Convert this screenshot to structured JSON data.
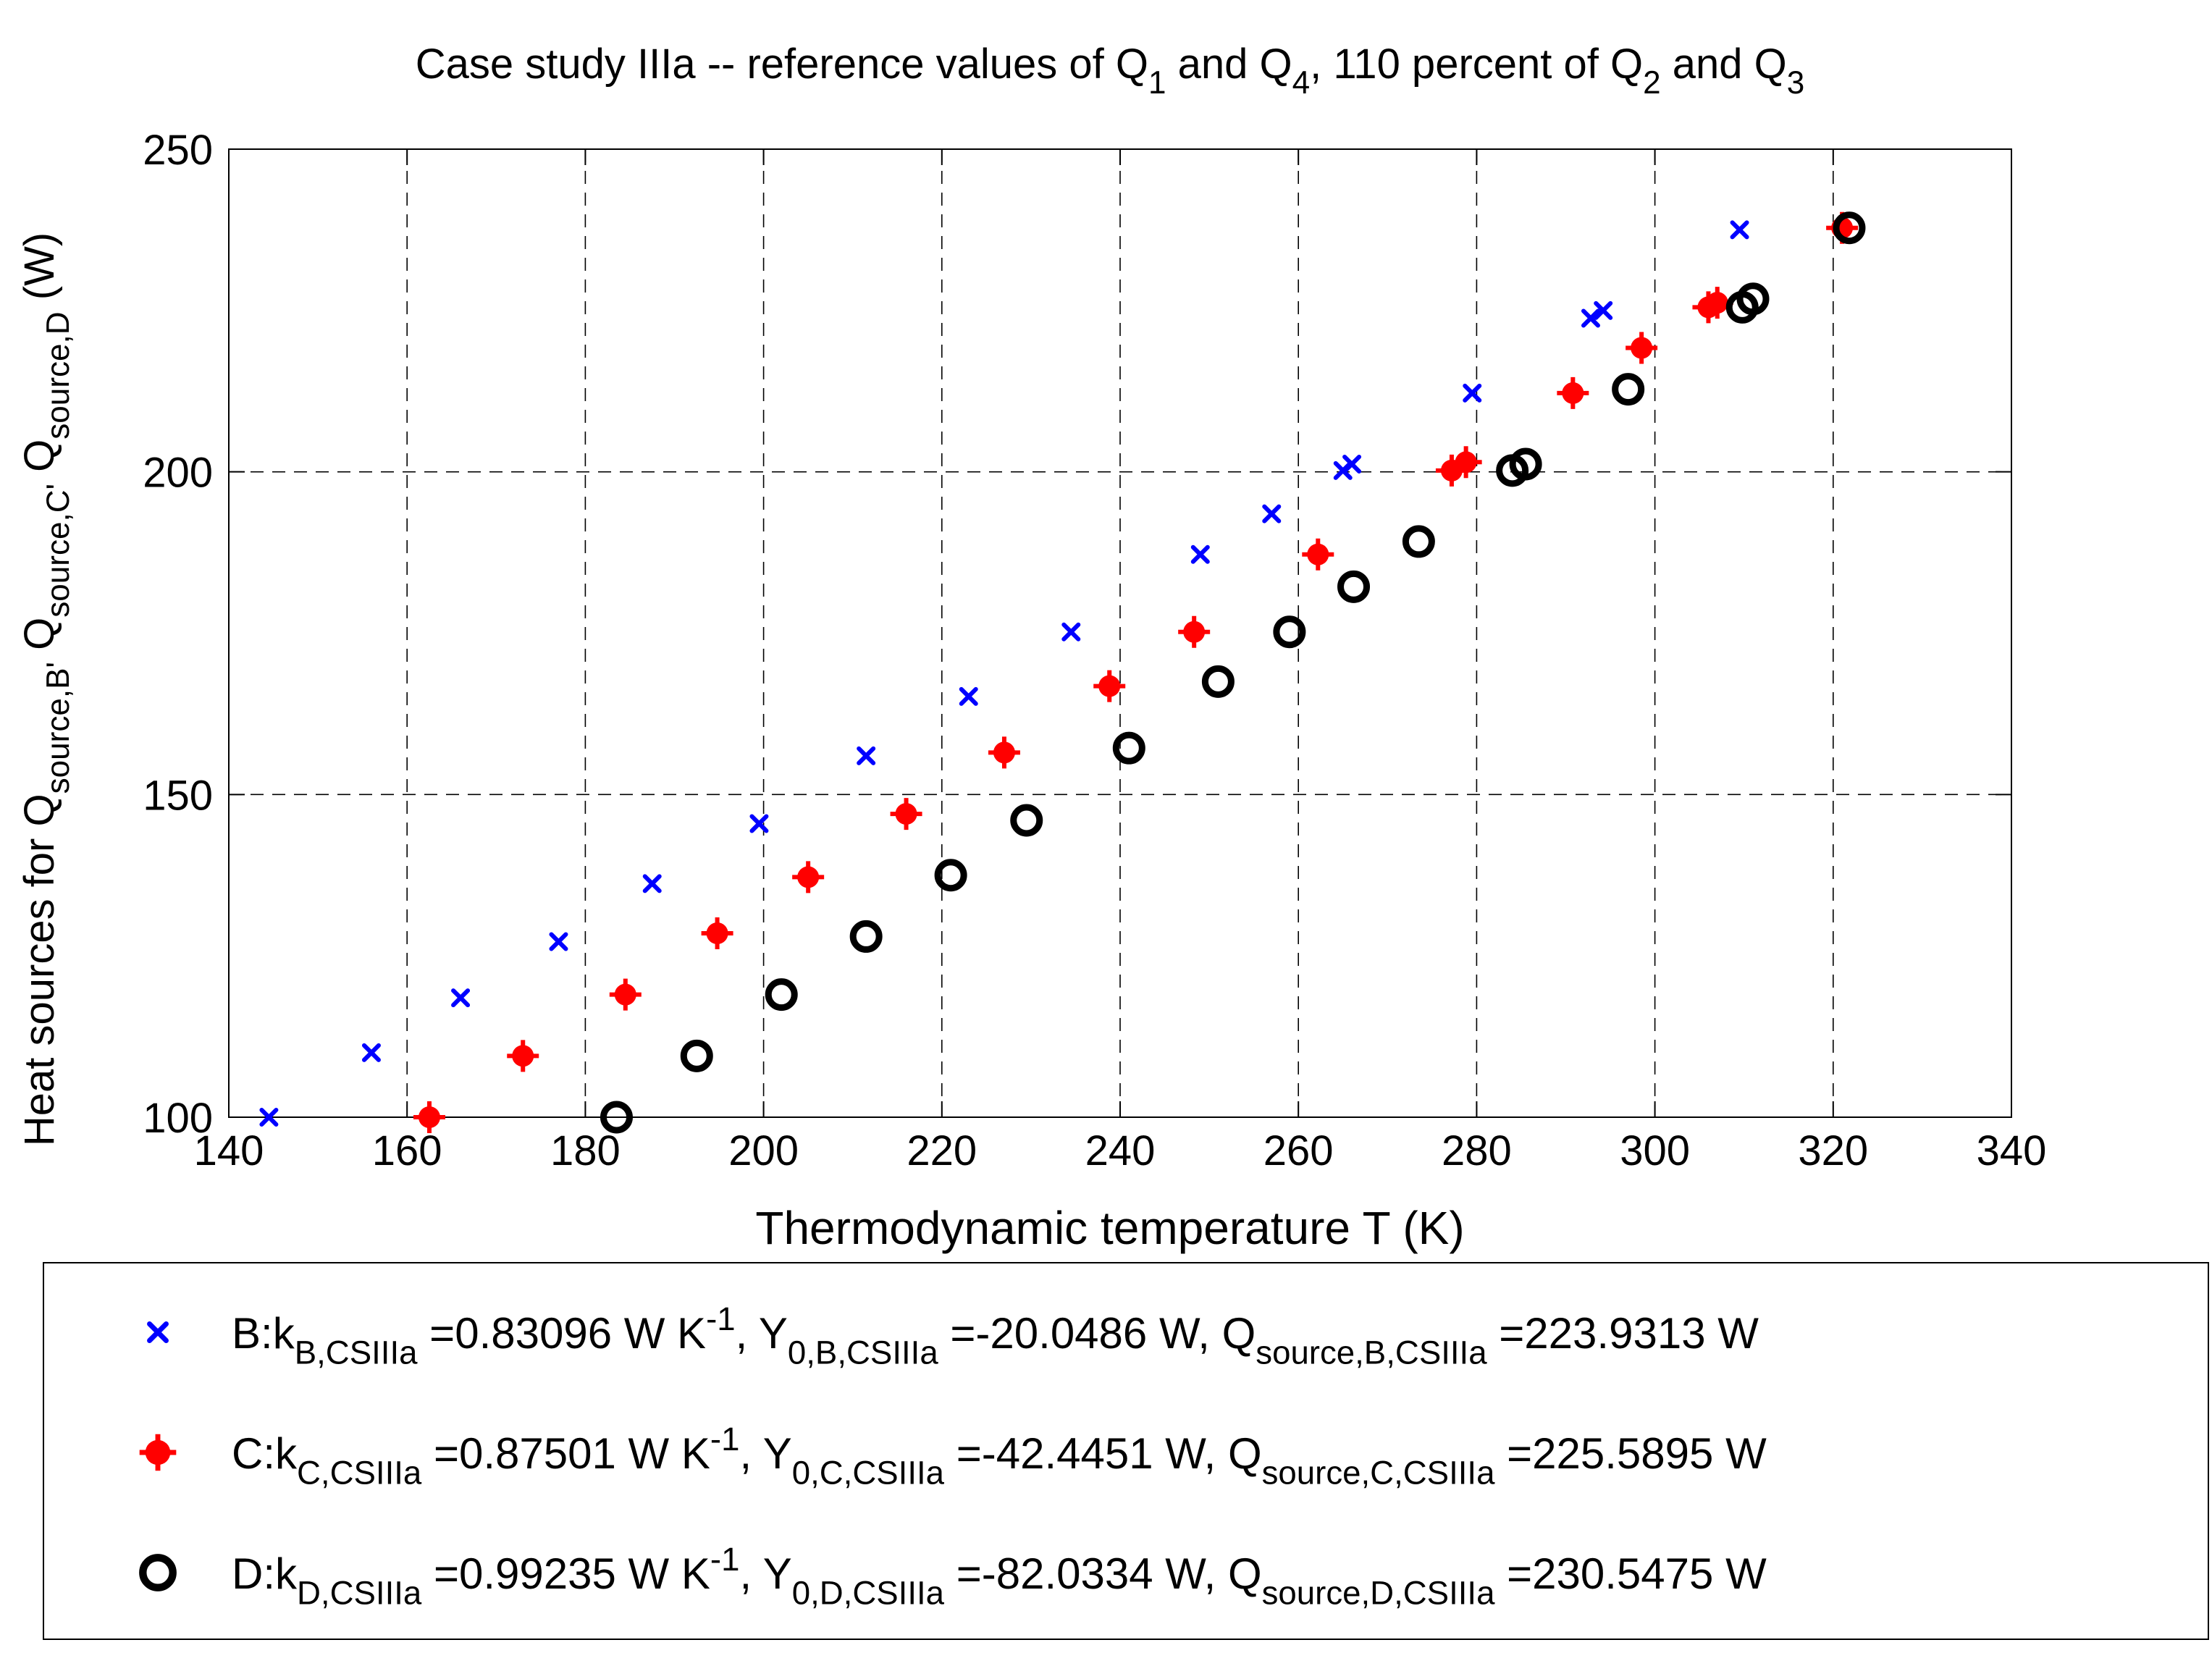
{
  "chart_data": {
    "type": "scatter",
    "title_parts": [
      {
        "text": "Case study IIIa -- reference values of Q"
      },
      {
        "text": "1",
        "sub": true
      },
      {
        "text": " and Q"
      },
      {
        "text": "4",
        "sub": true
      },
      {
        "text": ", 110 percent of Q"
      },
      {
        "text": "2",
        "sub": true
      },
      {
        "text": " and Q"
      },
      {
        "text": "3",
        "sub": true
      }
    ],
    "xlabel": "Thermodynamic temperature T (K)",
    "ylabel_parts": [
      {
        "text": "Heat sources for Q"
      },
      {
        "text": "source,B'",
        "sub": true
      },
      {
        "text": "  Q"
      },
      {
        "text": "source,C'",
        "sub": true
      },
      {
        "text": "  Q"
      },
      {
        "text": "source,D",
        "sub": true
      },
      {
        "text": " (W)"
      }
    ],
    "xlim": [
      140,
      340
    ],
    "ylim": [
      100,
      250
    ],
    "xticks": [
      140,
      160,
      180,
      200,
      220,
      240,
      260,
      280,
      300,
      320,
      340
    ],
    "yticks": [
      100,
      150,
      200,
      250
    ],
    "grid": true,
    "legend_position": "bottom, below plot",
    "series": [
      {
        "name": "B",
        "marker": "x",
        "color": "#0000ff",
        "legend_parts": [
          {
            "text": "B:k"
          },
          {
            "text": "B,CSIIIa",
            "sub": true
          },
          {
            "text": " =0.83096 W K"
          },
          {
            "text": "-1",
            "sup": true
          },
          {
            "text": ", Y"
          },
          {
            "text": "0,B,CSIIIa",
            "sub": true
          },
          {
            "text": " =-20.0486 W, Q"
          },
          {
            "text": "source,B,CSIIIa",
            "sub": true
          },
          {
            "text": " =223.9313 W"
          }
        ],
        "points": [
          [
            144.5,
            100
          ],
          [
            156,
            110
          ],
          [
            166,
            118.5
          ],
          [
            177,
            127.2
          ],
          [
            187.5,
            136.2
          ],
          [
            199.5,
            145.5
          ],
          [
            211.5,
            156
          ],
          [
            223,
            165.2
          ],
          [
            234.5,
            175.2
          ],
          [
            249,
            187.2
          ],
          [
            257,
            193.5
          ],
          [
            265,
            200.2
          ],
          [
            266,
            201.2
          ],
          [
            279.5,
            212.2
          ],
          [
            292.8,
            223.8
          ],
          [
            294.2,
            225
          ],
          [
            309.5,
            237.5
          ]
        ]
      },
      {
        "name": "C",
        "marker": "plus-dot",
        "color": "#ff0000",
        "legend_parts": [
          {
            "text": "C:k"
          },
          {
            "text": "C,CSIIIa",
            "sub": true
          },
          {
            "text": " =0.87501 W K"
          },
          {
            "text": "-1",
            "sup": true
          },
          {
            "text": ", Y"
          },
          {
            "text": "0,C,CSIIIa",
            "sub": true
          },
          {
            "text": " =-42.4451 W, Q"
          },
          {
            "text": "source,C,CSIIIa",
            "sub": true
          },
          {
            "text": " =225.5895 W"
          }
        ],
        "points": [
          [
            162.5,
            100
          ],
          [
            173,
            109.5
          ],
          [
            184.5,
            119
          ],
          [
            194.8,
            128.5
          ],
          [
            205,
            137.2
          ],
          [
            216,
            147
          ],
          [
            227,
            156.5
          ],
          [
            238.8,
            166.8
          ],
          [
            248.3,
            175.2
          ],
          [
            262.2,
            187.2
          ],
          [
            277.2,
            200.2
          ],
          [
            278.8,
            201.5
          ],
          [
            290.8,
            212.2
          ],
          [
            298.5,
            219.2
          ],
          [
            306,
            225.5
          ],
          [
            307,
            226.2
          ],
          [
            321,
            237.8
          ]
        ]
      },
      {
        "name": "D",
        "marker": "circle",
        "color": "#000000",
        "legend_parts": [
          {
            "text": "D:k"
          },
          {
            "text": "D,CSIIIa",
            "sub": true
          },
          {
            "text": " =0.99235 W K"
          },
          {
            "text": "-1",
            "sup": true
          },
          {
            "text": ", Y"
          },
          {
            "text": "0,D,CSIIIa",
            "sub": true
          },
          {
            "text": " =-82.0334 W, Q"
          },
          {
            "text": "source,D,CSIIIa",
            "sub": true
          },
          {
            "text": " =230.5475 W"
          }
        ],
        "points": [
          [
            183.5,
            100
          ],
          [
            192.5,
            109.5
          ],
          [
            202,
            119
          ],
          [
            211.5,
            128
          ],
          [
            221,
            137.5
          ],
          [
            229.5,
            146
          ],
          [
            241,
            157.2
          ],
          [
            251,
            167.5
          ],
          [
            259,
            175.2
          ],
          [
            266.2,
            182.2
          ],
          [
            273.5,
            189.2
          ],
          [
            284,
            200.2
          ],
          [
            285.5,
            201.2
          ],
          [
            297,
            212.8
          ],
          [
            309.8,
            225.5
          ],
          [
            311,
            226.8
          ],
          [
            321.8,
            237.8
          ]
        ]
      }
    ]
  }
}
